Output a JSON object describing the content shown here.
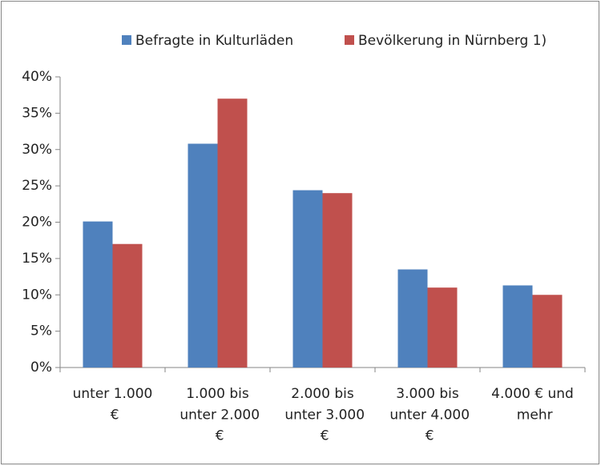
{
  "chart_data": {
    "type": "bar",
    "categories": [
      "unter 1.000 €",
      "1.000 bis unter 2.000 €",
      "2.000 bis unter 3.000 €",
      "3.000 bis unter 4.000 €",
      "4.000 € und mehr"
    ],
    "series": [
      {
        "name": "Befragte in Kulturläden",
        "color": "#4f81bd",
        "values": [
          20.1,
          30.8,
          24.4,
          13.5,
          11.3
        ]
      },
      {
        "name": "Bevölkerung in Nürnberg 1)",
        "color": "#c0504d",
        "values": [
          17,
          37,
          24,
          11,
          10
        ]
      }
    ],
    "ylim": [
      0,
      40
    ],
    "yticks": [
      {
        "value": 0,
        "label": "0%"
      },
      {
        "value": 5,
        "label": "5%"
      },
      {
        "value": 10,
        "label": "10%"
      },
      {
        "value": 15,
        "label": "15%"
      },
      {
        "value": 20,
        "label": "20%"
      },
      {
        "value": 25,
        "label": "25%"
      },
      {
        "value": 30,
        "label": "30%"
      },
      {
        "value": 35,
        "label": "35%"
      },
      {
        "value": 40,
        "label": "40%"
      }
    ],
    "grid": false,
    "legend": "top"
  }
}
